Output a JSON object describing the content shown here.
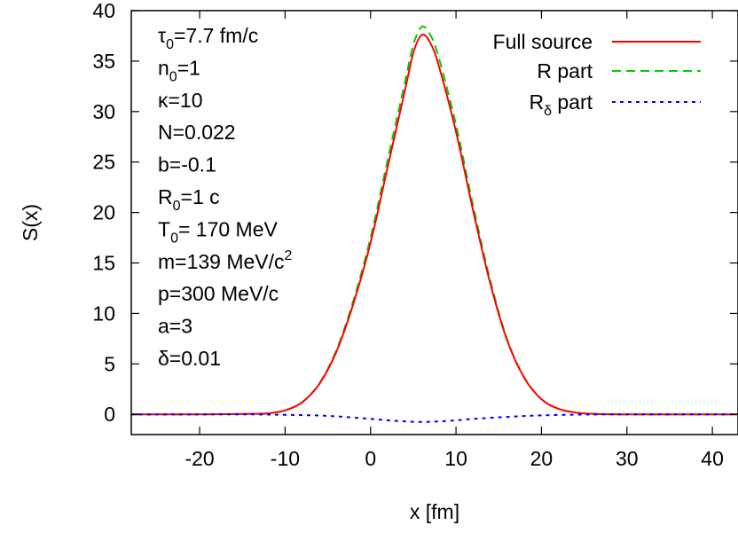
{
  "chart_data": {
    "type": "line",
    "title": "",
    "xlabel": "x [fm]",
    "ylabel": "S(x)",
    "xlim": [
      -28,
      43
    ],
    "ylim": [
      -2,
      40
    ],
    "x_ticks": [
      -20,
      -10,
      0,
      10,
      20,
      30,
      40
    ],
    "y_ticks": [
      0,
      5,
      10,
      15,
      20,
      25,
      30,
      35,
      40
    ],
    "grid": false,
    "legend_position": "top-right",
    "series": [
      {
        "name": "Full source",
        "color": "#ff0000",
        "style": "solid",
        "x": [
          -28,
          -20,
          -14,
          -12,
          -10,
          -8,
          -6,
          -4,
          -2,
          0,
          2,
          4,
          5,
          6,
          7,
          8,
          10,
          12,
          14,
          16,
          18,
          20,
          22,
          24,
          26,
          30,
          43
        ],
        "y": [
          0,
          0,
          0.05,
          0.1,
          0.4,
          1.2,
          3.0,
          6.2,
          11.0,
          17.0,
          24.5,
          32.0,
          35.8,
          37.6,
          36.8,
          34.5,
          28.0,
          20.2,
          13.0,
          7.3,
          3.6,
          1.5,
          0.55,
          0.18,
          0.05,
          0,
          0
        ]
      },
      {
        "name": "R part",
        "color": "#00cc00",
        "style": "dashed",
        "x": [
          -28,
          -20,
          -14,
          -12,
          -10,
          -8,
          -6,
          -4,
          -2,
          0,
          2,
          4,
          5,
          6,
          7,
          8,
          10,
          12,
          14,
          16,
          18,
          20,
          22,
          24,
          26,
          30,
          43
        ],
        "y": [
          0,
          0,
          0.05,
          0.1,
          0.4,
          1.2,
          3.05,
          6.35,
          11.3,
          17.5,
          25.2,
          32.8,
          36.6,
          38.4,
          37.6,
          35.3,
          28.7,
          20.7,
          13.3,
          7.4,
          3.65,
          1.5,
          0.55,
          0.18,
          0.05,
          0,
          0
        ]
      },
      {
        "name": "R_δ part",
        "color": "#0000ff",
        "style": "dotted",
        "x": [
          -28,
          -15,
          -10,
          -5,
          0,
          3,
          6,
          9,
          12,
          16,
          20,
          25,
          30,
          43
        ],
        "y": [
          0,
          0,
          -0.05,
          -0.15,
          -0.45,
          -0.65,
          -0.75,
          -0.65,
          -0.45,
          -0.25,
          -0.1,
          -0.02,
          0,
          0
        ]
      }
    ],
    "annotations": [
      {
        "base": "τ",
        "sub": "0",
        "sup": "",
        "rest": "=7.7 fm/c"
      },
      {
        "base": "n",
        "sub": "0",
        "sup": "",
        "rest": "=1"
      },
      {
        "base": "κ=10",
        "sub": "",
        "sup": "",
        "rest": ""
      },
      {
        "base": "N=0.022",
        "sub": "",
        "sup": "",
        "rest": ""
      },
      {
        "base": "b=-0.1",
        "sub": "",
        "sup": "",
        "rest": ""
      },
      {
        "base": "R",
        "sub": "0",
        "sup": "",
        "rest": "=1 c"
      },
      {
        "base": "T",
        "sub": "0",
        "sup": "",
        "rest": "= 170 MeV"
      },
      {
        "base": "m=139 MeV/c",
        "sub": "",
        "sup": "2",
        "rest": ""
      },
      {
        "base": "p=300 MeV/c",
        "sub": "",
        "sup": "",
        "rest": ""
      },
      {
        "base": "a=3",
        "sub": "",
        "sup": "",
        "rest": ""
      },
      {
        "base": "δ=0.01",
        "sub": "",
        "sup": "",
        "rest": ""
      }
    ],
    "legend": [
      {
        "base": "Full source",
        "sub": ""
      },
      {
        "base": "R part",
        "sub": ""
      },
      {
        "base": "R",
        "sub": "δ",
        "rest": " part"
      }
    ]
  }
}
